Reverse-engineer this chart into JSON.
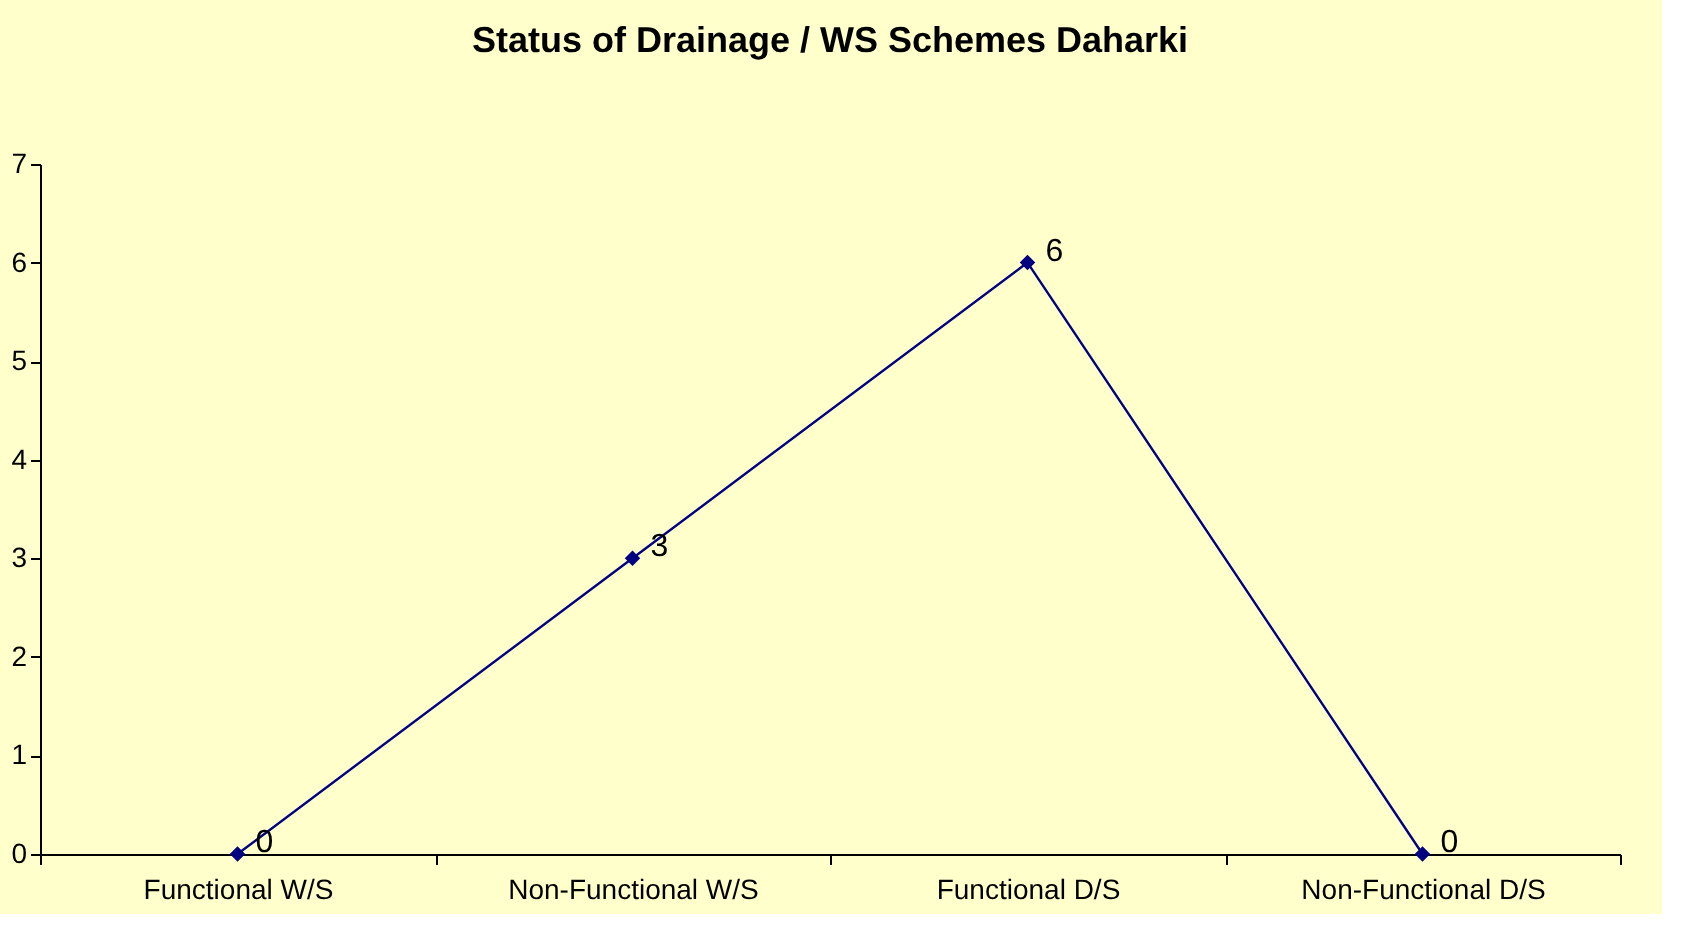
{
  "chart_data": {
    "type": "line",
    "title": "Status of Drainage / WS Schemes Daharki",
    "categories": [
      "Functional W/S",
      "Non-Functional W/S",
      "Functional D/S",
      "Non-Functional D/S"
    ],
    "series": [
      {
        "color": "#000080",
        "values": [
          0,
          3,
          6,
          0
        ]
      }
    ],
    "ylim": [
      0,
      7
    ],
    "yticks": [
      0,
      1,
      2,
      3,
      4,
      5,
      6,
      7
    ],
    "grid": false,
    "legend": false,
    "marker": "diamond",
    "line_style": "solid",
    "data_labels": true
  }
}
